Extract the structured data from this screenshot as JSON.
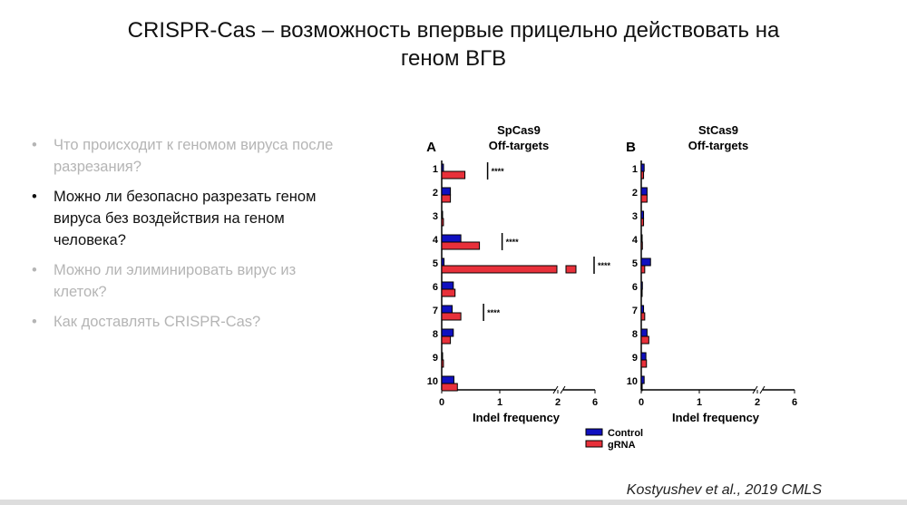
{
  "slide": {
    "title_line1": "CRISPR-Cas – возможность впервые прицельно действовать на",
    "title_line2": "геном ВГВ",
    "bullets": [
      {
        "text": "Что происходит к геномом вируса после разрезания?",
        "active": false
      },
      {
        "text": "Можно ли безопасно разрезать геном вируса без воздействия на геном человека?",
        "active": true
      },
      {
        "text": "Можно ли элиминировать вирус из клеток?",
        "active": false
      },
      {
        "text": "Как доставлять CRISPR-Cas?",
        "active": false
      }
    ],
    "citation": "Kostyushev et al., 2019 CMLS"
  },
  "chart_data": [
    {
      "type": "bar",
      "panel": "A",
      "title": "SpCas9",
      "subtitle": "Off-targets",
      "xlabel": "Indel frequency",
      "categories": [
        "1",
        "2",
        "3",
        "4",
        "5",
        "6",
        "7",
        "8",
        "9",
        "10"
      ],
      "xticks": [
        "0",
        "1",
        "2",
        "6"
      ],
      "xlim": [
        0,
        6
      ],
      "axis_break": [
        2,
        4
      ],
      "series": [
        {
          "name": "Control",
          "color": "#1010c0",
          "values": [
            0.03,
            0.15,
            0.01,
            0.33,
            0.04,
            0.2,
            0.18,
            0.2,
            0.01,
            0.21
          ]
        },
        {
          "name": "gRNA",
          "color": "#e8303a",
          "values": [
            0.4,
            0.15,
            0.03,
            0.65,
            4.8,
            0.23,
            0.33,
            0.15,
            0.03,
            0.27
          ]
        }
      ],
      "annotations": [
        {
          "category": "1",
          "text": "****"
        },
        {
          "category": "4",
          "text": "****"
        },
        {
          "category": "5",
          "text": "****"
        },
        {
          "category": "7",
          "text": "****"
        }
      ]
    },
    {
      "type": "bar",
      "panel": "B",
      "title": "StCas9",
      "subtitle": "Off-targets",
      "xlabel": "Indel frequency",
      "categories": [
        "1",
        "2",
        "3",
        "4",
        "5",
        "6",
        "7",
        "8",
        "9",
        "10"
      ],
      "xticks": [
        "0",
        "1",
        "2",
        "6"
      ],
      "xlim": [
        0,
        6
      ],
      "axis_break": [
        2,
        4
      ],
      "series": [
        {
          "name": "Control",
          "color": "#1010c0",
          "values": [
            0.05,
            0.1,
            0.04,
            0.01,
            0.16,
            0.02,
            0.04,
            0.1,
            0.08,
            0.05
          ]
        },
        {
          "name": "gRNA",
          "color": "#e8303a",
          "values": [
            0.04,
            0.1,
            0.04,
            0.02,
            0.06,
            0.01,
            0.06,
            0.13,
            0.09,
            0.01
          ]
        }
      ],
      "annotations": []
    }
  ],
  "legend": [
    {
      "label": "Control",
      "color": "#1010c0"
    },
    {
      "label": "gRNA",
      "color": "#e8303a"
    }
  ]
}
